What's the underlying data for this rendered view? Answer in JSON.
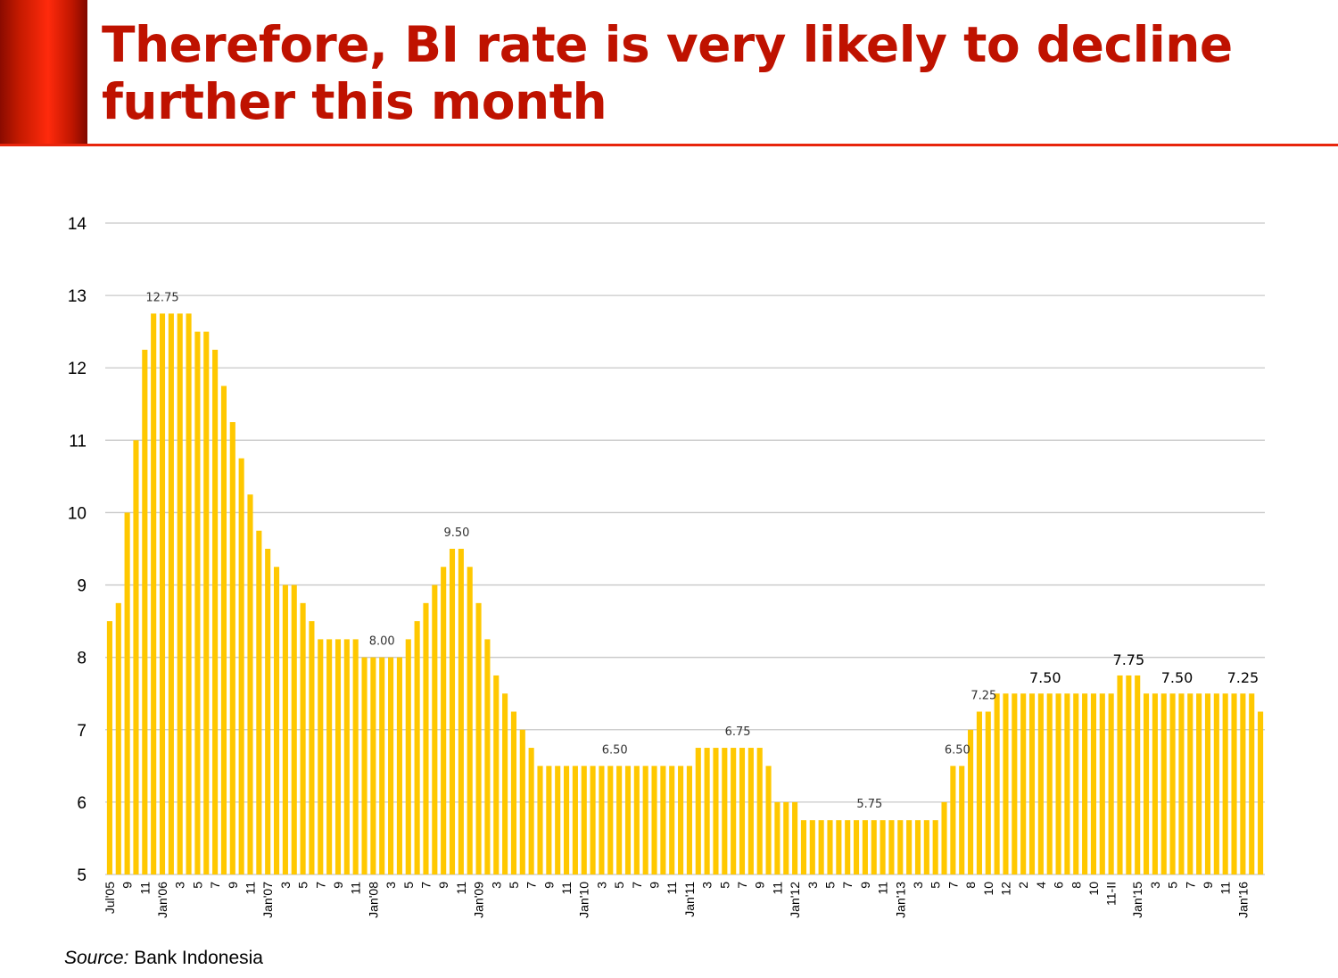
{
  "slide": {
    "title_line1": "Therefore, BI rate is very likely to decline",
    "title_line2": "further this month",
    "source_label": "Source:",
    "source_text": " Bank Indonesia"
  },
  "colors": {
    "title": "#bf1200",
    "accent": "#e8250c",
    "bar": "#ffc800",
    "grid": "#c8c8c8"
  },
  "chart_data": {
    "type": "bar",
    "title": "",
    "xlabel": "",
    "ylabel": "",
    "ylim": [
      5,
      14
    ],
    "yticks": [
      5,
      6,
      7,
      8,
      9,
      10,
      11,
      12,
      13,
      14
    ],
    "grid": true,
    "legend": "none",
    "series": [
      {
        "values": [
          8.5,
          8.75,
          10,
          11,
          12.25,
          12.75,
          12.75,
          12.75,
          12.75,
          12.75,
          12.5,
          12.5,
          12.25,
          11.75,
          11.25,
          10.75,
          10.25,
          9.75,
          9.5,
          9.25,
          9,
          9,
          8.75,
          8.5,
          8.25,
          8.25,
          8.25,
          8.25,
          8.25,
          8,
          8,
          8,
          8,
          8,
          8.25,
          8.5,
          8.75,
          9,
          9.25,
          9.5,
          9.5,
          9.25,
          8.75,
          8.25,
          7.75,
          7.5,
          7.25,
          7,
          6.75,
          6.5,
          6.5,
          6.5,
          6.5,
          6.5,
          6.5,
          6.5,
          6.5,
          6.5,
          6.5,
          6.5,
          6.5,
          6.5,
          6.5,
          6.5,
          6.5,
          6.5,
          6.5,
          6.75,
          6.75,
          6.75,
          6.75,
          6.75,
          6.75,
          6.75,
          6.75,
          6.5,
          6,
          6,
          6,
          5.75,
          5.75,
          5.75,
          5.75,
          5.75,
          5.75,
          5.75,
          5.75,
          5.75,
          5.75,
          5.75,
          5.75,
          5.75,
          5.75,
          5.75,
          5.75,
          6,
          6.5,
          6.5,
          7,
          7.25,
          7.25,
          7.5,
          7.5,
          7.5,
          7.5,
          7.5,
          7.5,
          7.5,
          7.5,
          7.5,
          7.5,
          7.5,
          7.5,
          7.5,
          7.5,
          7.75,
          7.75,
          7.75,
          7.5,
          7.5,
          7.5,
          7.5,
          7.5,
          7.5,
          7.5,
          7.5,
          7.5,
          7.5,
          7.5,
          7.5,
          7.5,
          7.25
        ]
      }
    ],
    "x_tick_labels": [
      {
        "i": 0,
        "text": "Jul'05"
      },
      {
        "i": 2,
        "text": "9"
      },
      {
        "i": 4,
        "text": "11"
      },
      {
        "i": 6,
        "text": "Jan'06"
      },
      {
        "i": 8,
        "text": "3"
      },
      {
        "i": 10,
        "text": "5"
      },
      {
        "i": 12,
        "text": "7"
      },
      {
        "i": 14,
        "text": "9"
      },
      {
        "i": 16,
        "text": "11"
      },
      {
        "i": 18,
        "text": "Jan'07"
      },
      {
        "i": 20,
        "text": "3"
      },
      {
        "i": 22,
        "text": "5"
      },
      {
        "i": 24,
        "text": "7"
      },
      {
        "i": 26,
        "text": "9"
      },
      {
        "i": 28,
        "text": "11"
      },
      {
        "i": 30,
        "text": "Jan'08"
      },
      {
        "i": 32,
        "text": "3"
      },
      {
        "i": 34,
        "text": "5"
      },
      {
        "i": 36,
        "text": "7"
      },
      {
        "i": 38,
        "text": "9"
      },
      {
        "i": 40,
        "text": "11"
      },
      {
        "i": 42,
        "text": "Jan'09"
      },
      {
        "i": 44,
        "text": "3"
      },
      {
        "i": 46,
        "text": "5"
      },
      {
        "i": 48,
        "text": "7"
      },
      {
        "i": 50,
        "text": "9"
      },
      {
        "i": 52,
        "text": "11"
      },
      {
        "i": 54,
        "text": "Jan'10"
      },
      {
        "i": 56,
        "text": "3"
      },
      {
        "i": 58,
        "text": "5"
      },
      {
        "i": 60,
        "text": "7"
      },
      {
        "i": 62,
        "text": "9"
      },
      {
        "i": 64,
        "text": "11"
      },
      {
        "i": 66,
        "text": "Jan'11"
      },
      {
        "i": 68,
        "text": "3"
      },
      {
        "i": 70,
        "text": "5"
      },
      {
        "i": 72,
        "text": "7"
      },
      {
        "i": 74,
        "text": "9"
      },
      {
        "i": 76,
        "text": "11"
      },
      {
        "i": 78,
        "text": "Jan'12"
      },
      {
        "i": 80,
        "text": "3"
      },
      {
        "i": 82,
        "text": "5"
      },
      {
        "i": 84,
        "text": "7"
      },
      {
        "i": 86,
        "text": "9"
      },
      {
        "i": 88,
        "text": "11"
      },
      {
        "i": 90,
        "text": "Jan'13"
      },
      {
        "i": 92,
        "text": "3"
      },
      {
        "i": 94,
        "text": "5"
      },
      {
        "i": 96,
        "text": "7"
      },
      {
        "i": 98,
        "text": "8"
      },
      {
        "i": 100,
        "text": "10"
      },
      {
        "i": 102,
        "text": "12"
      },
      {
        "i": 104,
        "text": "2"
      },
      {
        "i": 106,
        "text": "4"
      },
      {
        "i": 108,
        "text": "6"
      },
      {
        "i": 110,
        "text": "8"
      },
      {
        "i": 112,
        "text": "10"
      },
      {
        "i": 114,
        "text": "11-II"
      },
      {
        "i": 117,
        "text": "Jan'15"
      },
      {
        "i": 119,
        "text": "3"
      },
      {
        "i": 121,
        "text": "5"
      },
      {
        "i": 123,
        "text": "7"
      },
      {
        "i": 125,
        "text": "9"
      },
      {
        "i": 127,
        "text": "11"
      },
      {
        "i": 129,
        "text": "Jan'16"
      }
    ],
    "annotations": [
      {
        "i": 6,
        "text": "12.75",
        "size": "small"
      },
      {
        "i": 31,
        "text": "8.00",
        "size": "small"
      },
      {
        "i": 39.5,
        "text": "9.50",
        "size": "small"
      },
      {
        "i": 57.5,
        "text": "6.50",
        "size": "small"
      },
      {
        "i": 71.5,
        "text": "6.75",
        "size": "small"
      },
      {
        "i": 86.5,
        "text": "5.75",
        "size": "small"
      },
      {
        "i": 96.5,
        "text": "6.50",
        "size": "small"
      },
      {
        "i": 99.5,
        "text": "7.25",
        "size": "small"
      },
      {
        "i": 106.5,
        "text": "7.50",
        "size": "large"
      },
      {
        "i": 116,
        "text": "7.75",
        "size": "large"
      },
      {
        "i": 121.5,
        "text": "7.50",
        "size": "large"
      },
      {
        "i": 129,
        "text": "7.25",
        "size": "large"
      }
    ]
  }
}
